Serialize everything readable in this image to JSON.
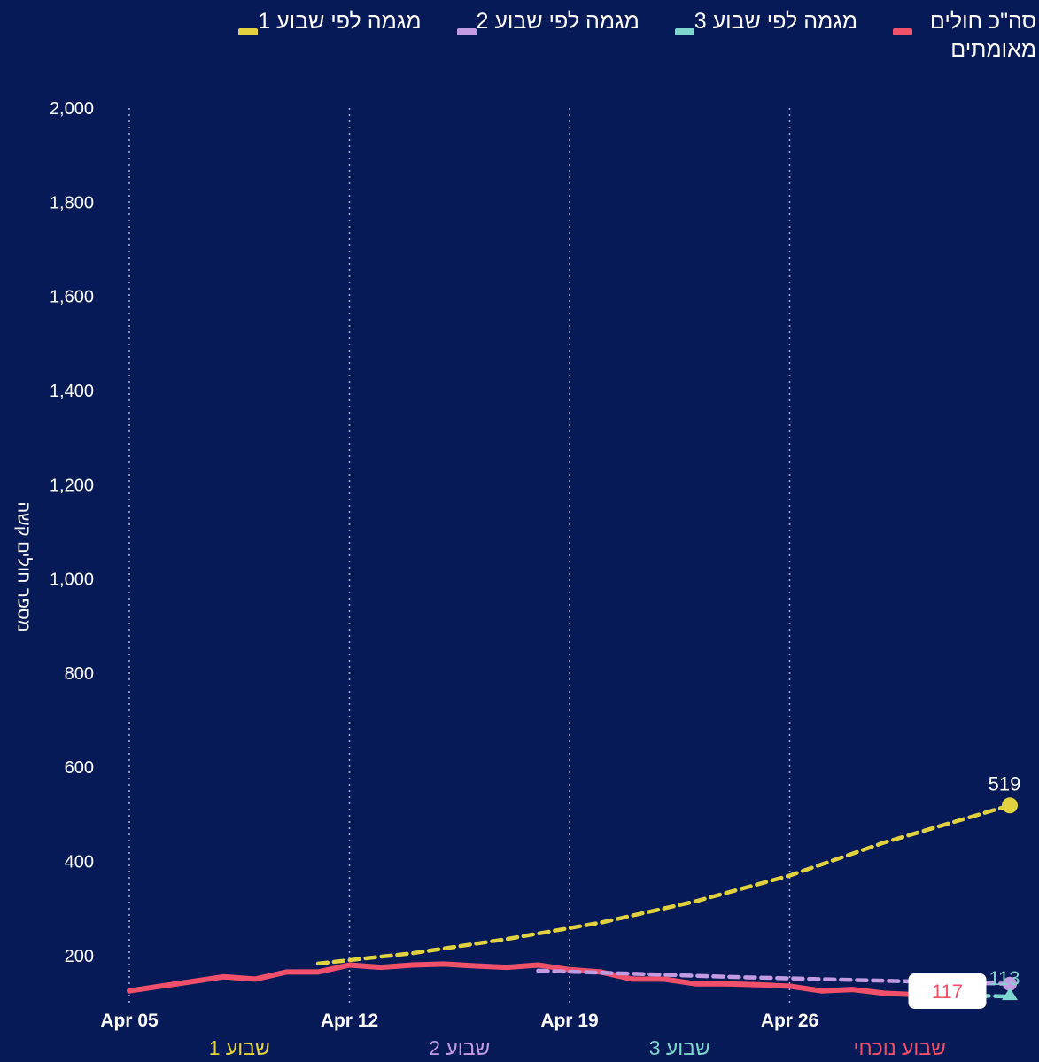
{
  "legend": [
    {
      "label": "סה\"כ חולים מאומתים",
      "color": "#f0506a"
    },
    {
      "label": "מגמה לפי שבוע 3",
      "color": "#7fd6cf"
    },
    {
      "label": "מגמה לפי שבוע 2",
      "color": "#c39be2"
    },
    {
      "label": "מגמה לפי שבוע 1",
      "color": "#e3d23f"
    }
  ],
  "chart_data": {
    "type": "line",
    "ylabel": "מספר חולים קשה",
    "ylim": [
      100,
      2000
    ],
    "yticks": [
      "2,000",
      "1,800",
      "1,600",
      "1,400",
      "1,200",
      "1,000",
      "800",
      "600",
      "400",
      "200"
    ],
    "ytick_values": [
      2000,
      1800,
      1600,
      1400,
      1200,
      1000,
      800,
      600,
      400,
      200
    ],
    "xlim": [
      "2021-04-05",
      "2021-05-03"
    ],
    "xticks": [
      {
        "label": "Apr 05",
        "date": "2021-04-05"
      },
      {
        "label": "Apr 12",
        "date": "2021-04-12"
      },
      {
        "label": "Apr 19",
        "date": "2021-04-19"
      },
      {
        "label": "Apr 26",
        "date": "2021-04-26"
      }
    ],
    "week_bands": [
      {
        "label": "שבוע 1",
        "from": "2021-04-05",
        "to": "2021-04-12",
        "color": "#e3d23f"
      },
      {
        "label": "שבוע 2",
        "from": "2021-04-12",
        "to": "2021-04-19",
        "color": "#c39be2"
      },
      {
        "label": "שבוע 3",
        "from": "2021-04-19",
        "to": "2021-04-26",
        "color": "#7fd6cf"
      },
      {
        "label": "שבוע נוכחי",
        "from": "2021-04-26",
        "to": "2021-05-03",
        "color": "#f0506a"
      }
    ],
    "grid": "vertical dotted at week boundaries",
    "series": [
      {
        "name": "סה\"כ חולים מאומתים",
        "color": "#f0506a",
        "style": "solid",
        "points": [
          [
            "2021-04-05",
            125
          ],
          [
            "2021-04-06",
            135
          ],
          [
            "2021-04-07",
            145
          ],
          [
            "2021-04-08",
            155
          ],
          [
            "2021-04-09",
            150
          ],
          [
            "2021-04-10",
            165
          ],
          [
            "2021-04-11",
            165
          ],
          [
            "2021-04-12",
            180
          ],
          [
            "2021-04-13",
            175
          ],
          [
            "2021-04-14",
            180
          ],
          [
            "2021-04-15",
            182
          ],
          [
            "2021-04-16",
            178
          ],
          [
            "2021-04-17",
            175
          ],
          [
            "2021-04-18",
            180
          ],
          [
            "2021-04-19",
            170
          ],
          [
            "2021-04-20",
            165
          ],
          [
            "2021-04-21",
            150
          ],
          [
            "2021-04-22",
            150
          ],
          [
            "2021-04-23",
            140
          ],
          [
            "2021-04-24",
            140
          ],
          [
            "2021-04-25",
            138
          ],
          [
            "2021-04-26",
            135
          ],
          [
            "2021-04-27",
            125
          ],
          [
            "2021-04-28",
            128
          ],
          [
            "2021-04-29",
            120
          ],
          [
            "2021-04-30",
            117
          ]
        ],
        "end_label": "117"
      },
      {
        "name": "מגמה לפי שבוע 1",
        "color": "#e3d23f",
        "style": "dashed",
        "points": [
          [
            "2021-04-11",
            183
          ],
          [
            "2021-04-14",
            205
          ],
          [
            "2021-04-17",
            235
          ],
          [
            "2021-04-20",
            270
          ],
          [
            "2021-04-23",
            315
          ],
          [
            "2021-04-26",
            370
          ],
          [
            "2021-04-29",
            440
          ],
          [
            "2021-05-03",
            519
          ]
        ],
        "end_label": "519"
      },
      {
        "name": "מגמה לפי שבוע 2",
        "color": "#c39be2",
        "style": "dashed",
        "points": [
          [
            "2021-04-18",
            168
          ],
          [
            "2021-04-24",
            155
          ],
          [
            "2021-04-30",
            145
          ],
          [
            "2021-05-03",
            140
          ]
        ]
      },
      {
        "name": "מגמה לפי שבוע 3",
        "color": "#7fd6cf",
        "style": "dashed",
        "points": [
          [
            "2021-04-30",
            118
          ],
          [
            "2021-05-03",
            113
          ]
        ],
        "end_label": "113"
      }
    ]
  }
}
